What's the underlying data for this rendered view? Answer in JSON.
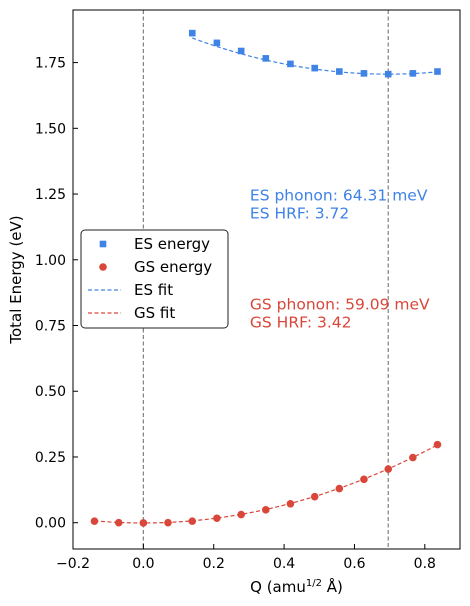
{
  "chart_data": {
    "type": "scatter",
    "xlabel": "Q (amu",
    "xlabel_sup": "1/2",
    "xlabel_tail": " Å)",
    "ylabel": "Total Energy (eV)",
    "xlim": [
      -0.2,
      0.9
    ],
    "ylim": [
      -0.1,
      1.95
    ],
    "x_ticks": [
      -0.2,
      0.0,
      0.2,
      0.4,
      0.6,
      0.8
    ],
    "x_tick_labels": [
      "−0.2",
      "0.0",
      "0.2",
      "0.4",
      "0.6",
      "0.8"
    ],
    "y_ticks": [
      0.0,
      0.25,
      0.5,
      0.75,
      1.0,
      1.25,
      1.5,
      1.75
    ],
    "y_tick_labels": [
      "0.00",
      "0.25",
      "0.50",
      "0.75",
      "1.00",
      "1.25",
      "1.50",
      "1.75"
    ],
    "vlines": [
      0.0,
      0.696
    ],
    "grid": false,
    "legend_placement": "center-left",
    "legend": [
      {
        "label": "ES energy",
        "kind": "square",
        "color": "#3f83e6"
      },
      {
        "label": "GS energy",
        "kind": "circle",
        "color": "#d9473a"
      },
      {
        "label": "ES fit",
        "kind": "dashed-line",
        "color": "#3f83e6"
      },
      {
        "label": "GS fit",
        "kind": "dashed-line",
        "color": "#d9473a"
      }
    ],
    "series": [
      {
        "name": "ES energy",
        "marker": "square",
        "color": "#3f83e6",
        "x": [
          0.139,
          0.209,
          0.278,
          0.348,
          0.418,
          0.487,
          0.557,
          0.627,
          0.696,
          0.766,
          0.836
        ],
        "y": [
          1.862,
          1.825,
          1.794,
          1.766,
          1.745,
          1.729,
          1.716,
          1.709,
          1.706,
          1.709,
          1.716
        ]
      },
      {
        "name": "GS energy",
        "marker": "circle",
        "color": "#d9473a",
        "x": [
          -0.139,
          -0.07,
          0.0,
          0.07,
          0.139,
          0.209,
          0.278,
          0.348,
          0.418,
          0.487,
          0.557,
          0.627,
          0.696,
          0.766,
          0.836
        ],
        "y": [
          0.006,
          0.0,
          -0.001,
          0.0,
          0.006,
          0.017,
          0.031,
          0.049,
          0.072,
          0.099,
          0.13,
          0.165,
          0.204,
          0.248,
          0.297
        ]
      }
    ],
    "fits": [
      {
        "name": "ES fit",
        "color": "#3f83e6",
        "x_range": [
          0.139,
          0.836
        ],
        "a": 0.4432,
        "x0": 0.696,
        "c": 1.706
      },
      {
        "name": "GS fit",
        "color": "#d9473a",
        "x_range": [
          -0.139,
          0.836
        ],
        "a": 0.4249,
        "x0": 0.0,
        "c": -0.001
      }
    ],
    "annotations": [
      {
        "lines": [
          "ES phonon: 64.31 meV",
          "ES HRF: 3.72"
        ],
        "color": "#3f83e6",
        "anchor_x": 0.3,
        "anchor_y": 1.225
      },
      {
        "lines": [
          "GS phonon: 59.09 meV",
          "GS HRF: 3.42"
        ],
        "color": "#d9473a",
        "anchor_x": 0.3,
        "anchor_y": 0.81
      }
    ]
  }
}
